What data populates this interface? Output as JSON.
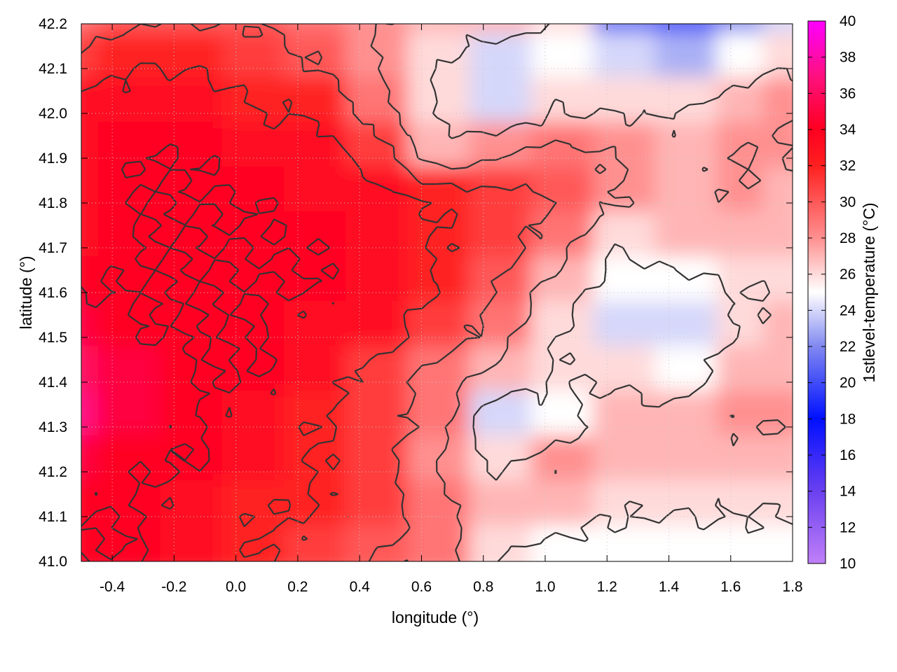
{
  "chart_data": {
    "type": "heatmap",
    "title": "",
    "xlabel": "longitude (°)",
    "ylabel": "latitude (°)",
    "colorbar_label": "1stlevel-temperature (°C)",
    "xlim": [
      -0.5,
      1.8
    ],
    "ylim": [
      41.0,
      42.2
    ],
    "clim": [
      10,
      40
    ],
    "x_ticks": [
      "-0.4",
      "-0.2",
      "0.0",
      "0.2",
      "0.4",
      "0.6",
      "0.8",
      "1.0",
      "1.2",
      "1.4",
      "1.6",
      "1.8"
    ],
    "y_ticks": [
      "41.0",
      "41.1",
      "41.2",
      "41.3",
      "41.4",
      "41.5",
      "41.6",
      "41.7",
      "41.8",
      "41.9",
      "42.0",
      "42.1",
      "42.2"
    ],
    "colorbar_ticks": [
      "10",
      "12",
      "14",
      "16",
      "18",
      "20",
      "22",
      "24",
      "26",
      "28",
      "30",
      "32",
      "34",
      "36",
      "38",
      "40"
    ],
    "colormap": [
      {
        "value": 10,
        "color": "#c080f8"
      },
      {
        "value": 14,
        "color": "#6a40f0"
      },
      {
        "value": 18,
        "color": "#0010ff"
      },
      {
        "value": 22,
        "color": "#8088f0"
      },
      {
        "value": 25,
        "color": "#ffffff"
      },
      {
        "value": 28,
        "color": "#ff9090"
      },
      {
        "value": 32,
        "color": "#ff2020"
      },
      {
        "value": 34,
        "color": "#ff0020"
      },
      {
        "value": 37,
        "color": "#ff1080"
      },
      {
        "value": 40,
        "color": "#ff00ff"
      }
    ],
    "grid": true,
    "contours": true,
    "field_lon": [
      -0.5,
      -0.3,
      -0.1,
      0.1,
      0.3,
      0.5,
      0.7,
      0.9,
      1.1,
      1.3,
      1.5,
      1.7,
      1.8
    ],
    "field_lat": [
      42.2,
      42.1,
      42.0,
      41.9,
      41.8,
      41.7,
      41.6,
      41.5,
      41.4,
      41.3,
      41.2,
      41.1,
      41.0
    ],
    "temperature_C": [
      [
        29,
        30,
        30,
        30,
        29,
        28,
        27,
        27,
        26,
        21,
        20,
        22,
        24
      ],
      [
        31,
        32,
        32,
        31,
        30,
        28,
        26,
        24,
        25,
        24,
        23,
        25,
        26
      ],
      [
        33,
        33,
        33,
        32,
        32,
        29,
        26,
        24,
        26,
        26,
        26,
        27,
        28
      ],
      [
        33,
        34,
        34,
        33,
        33,
        31,
        27,
        28,
        29,
        28,
        27,
        28,
        28
      ],
      [
        33,
        34,
        34,
        34,
        33,
        33,
        32,
        31,
        30,
        28,
        27,
        28,
        27
      ],
      [
        33,
        34,
        34,
        34,
        34,
        33,
        32,
        31,
        29,
        26,
        27,
        27,
        27
      ],
      [
        34,
        34,
        34,
        34,
        34,
        33,
        32,
        30,
        27,
        25,
        25,
        26,
        26
      ],
      [
        35,
        34,
        34,
        34,
        33,
        33,
        31,
        29,
        26,
        24,
        24,
        26,
        27
      ],
      [
        36,
        35,
        34,
        34,
        33,
        31,
        29,
        27,
        26,
        26,
        25,
        27,
        27
      ],
      [
        37,
        35,
        34,
        33,
        32,
        31,
        29,
        24,
        25,
        27,
        27,
        28,
        28
      ],
      [
        35,
        34,
        34,
        33,
        32,
        31,
        28,
        26,
        28,
        27,
        27,
        27,
        27
      ],
      [
        34,
        34,
        33,
        32,
        32,
        31,
        29,
        27,
        27,
        26,
        26,
        26,
        26
      ],
      [
        34,
        34,
        33,
        32,
        31,
        30,
        29,
        26,
        25,
        25,
        25,
        25,
        25
      ]
    ]
  }
}
